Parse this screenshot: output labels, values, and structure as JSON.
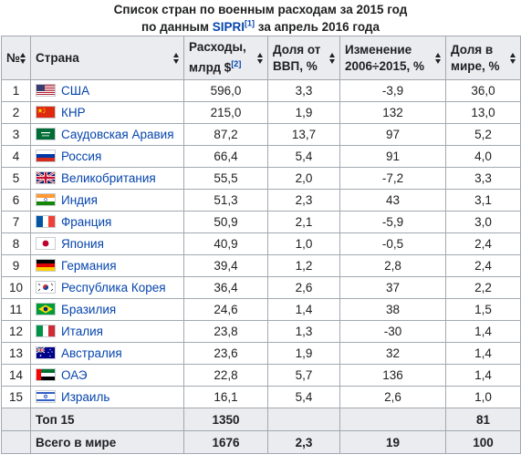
{
  "caption": {
    "line1": "Список стран по военным расходам за 2015 год",
    "line2_prefix": "по данным ",
    "sipri_link": "SIPRI",
    "ref1": "[1]",
    "line2_suffix": " за апрель 2016 года"
  },
  "headers": {
    "num": "№",
    "country": "Страна",
    "spending": "Расходы, млрд $",
    "spending_ref": "[2]",
    "gdp_share": "Доля от ВВП, %",
    "change": "Изменение 2006÷2015, %",
    "world_share": "Доля в мире, %"
  },
  "rows": [
    {
      "num": "1",
      "country": "США",
      "flag": "us-flag",
      "spending": "596,0",
      "gdp": "3,3",
      "change": "-3,9",
      "share": "36,0"
    },
    {
      "num": "2",
      "country": "КНР",
      "flag": "china-flag",
      "spending": "215,0",
      "gdp": "1,9",
      "change": "132",
      "share": "13,0"
    },
    {
      "num": "3",
      "country": "Саудовская Аравия",
      "flag": "saudi-arabia-flag",
      "spending": "87,2",
      "gdp": "13,7",
      "change": "97",
      "share": "5,2"
    },
    {
      "num": "4",
      "country": "Россия",
      "flag": "russia-flag",
      "spending": "66,4",
      "gdp": "5,4",
      "change": "91",
      "share": "4,0"
    },
    {
      "num": "5",
      "country": "Великобритания",
      "flag": "uk-flag",
      "spending": "55,5",
      "gdp": "2,0",
      "change": "-7,2",
      "share": "3,3"
    },
    {
      "num": "6",
      "country": "Индия",
      "flag": "india-flag",
      "spending": "51,3",
      "gdp": "2,3",
      "change": "43",
      "share": "3,1"
    },
    {
      "num": "7",
      "country": "Франция",
      "flag": "france-flag",
      "spending": "50,9",
      "gdp": "2,1",
      "change": "-5,9",
      "share": "3,0"
    },
    {
      "num": "8",
      "country": "Япония",
      "flag": "japan-flag",
      "spending": "40,9",
      "gdp": "1,0",
      "change": "-0,5",
      "share": "2,4"
    },
    {
      "num": "9",
      "country": "Германия",
      "flag": "germany-flag",
      "spending": "39,4",
      "gdp": "1,2",
      "change": "2,8",
      "share": "2,4"
    },
    {
      "num": "10",
      "country": "Республика Корея",
      "flag": "south-korea-flag",
      "spending": "36,4",
      "gdp": "2,6",
      "change": "37",
      "share": "2,2"
    },
    {
      "num": "11",
      "country": "Бразилия",
      "flag": "brazil-flag",
      "spending": "24,6",
      "gdp": "1,4",
      "change": "38",
      "share": "1,5"
    },
    {
      "num": "12",
      "country": "Италия",
      "flag": "italy-flag",
      "spending": "23,8",
      "gdp": "1,3",
      "change": "-30",
      "share": "1,4"
    },
    {
      "num": "13",
      "country": "Австралия",
      "flag": "australia-flag",
      "spending": "23,6",
      "gdp": "1,9",
      "change": "32",
      "share": "1,4"
    },
    {
      "num": "14",
      "country": "ОАЭ",
      "flag": "uae-flag",
      "spending": "22,8",
      "gdp": "5,7",
      "change": "136",
      "share": "1,4"
    },
    {
      "num": "15",
      "country": "Израиль",
      "flag": "israel-flag",
      "spending": "16,1",
      "gdp": "5,4",
      "change": "2,6",
      "share": "1,0"
    }
  ],
  "footer": [
    {
      "label": "Топ 15",
      "spending": "1350",
      "gdp": "",
      "change": "",
      "share": "81"
    },
    {
      "label": "Всего в мире",
      "spending": "1676",
      "gdp": "2,3",
      "change": "19",
      "share": "100"
    }
  ],
  "colors": {
    "link": "#0645ad",
    "header_bg": "#eaecf0",
    "border": "#a2a9b1"
  }
}
